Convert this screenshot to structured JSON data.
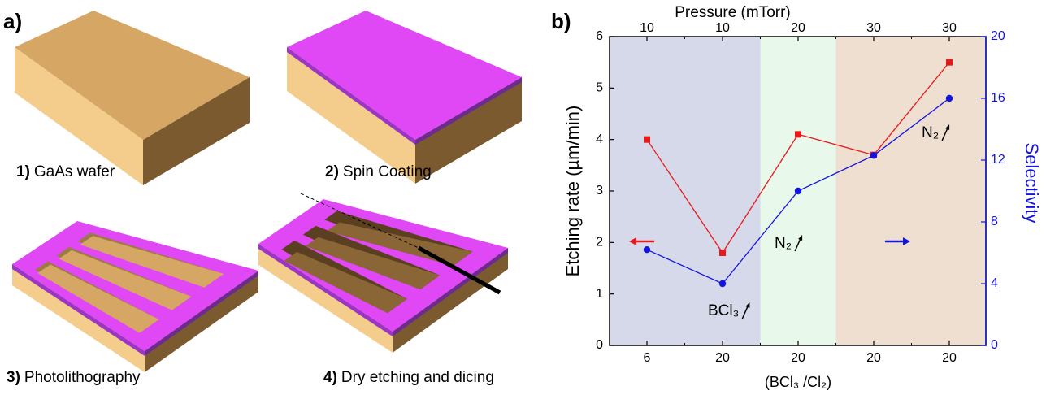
{
  "panel_a": {
    "label": "a)",
    "steps": [
      {
        "number": "1)",
        "text": "GaAs wafer"
      },
      {
        "number": "2)",
        "text": "Spin Coating"
      },
      {
        "number": "3)",
        "text": "Photolithography"
      },
      {
        "number": "4)",
        "text": "Dry etching and dicing"
      }
    ]
  },
  "chart_data": {
    "type": "line",
    "label": "b)",
    "top_axis_label": "Pressure (mTorr)",
    "top_categories": [
      "10",
      "10",
      "20",
      "30",
      "30"
    ],
    "x_label": "(BCl₃ /Cl₂)",
    "categories": [
      "6",
      "20",
      "20",
      "20",
      "20"
    ],
    "ylabel": "Etching rate (µm/min)",
    "y2label": "Selectivity",
    "ylim": [
      0,
      6
    ],
    "yticks": [
      0,
      1,
      2,
      3,
      4,
      5,
      6
    ],
    "y2lim": [
      0,
      20
    ],
    "y2ticks": [
      0,
      4,
      8,
      12,
      16,
      20
    ],
    "series": [
      {
        "color": "#e8191c",
        "values": [
          4.0,
          1.8,
          4.1,
          3.7,
          5.5
        ]
      },
      {
        "color": "#1414e0",
        "axis": "y2",
        "values": [
          6.2,
          4.0,
          10.0,
          12.3,
          16.0
        ]
      }
    ],
    "annotations": [
      {
        "text": "BCl₃"
      },
      {
        "text": "N₂"
      },
      {
        "text": "N₂"
      }
    ]
  }
}
